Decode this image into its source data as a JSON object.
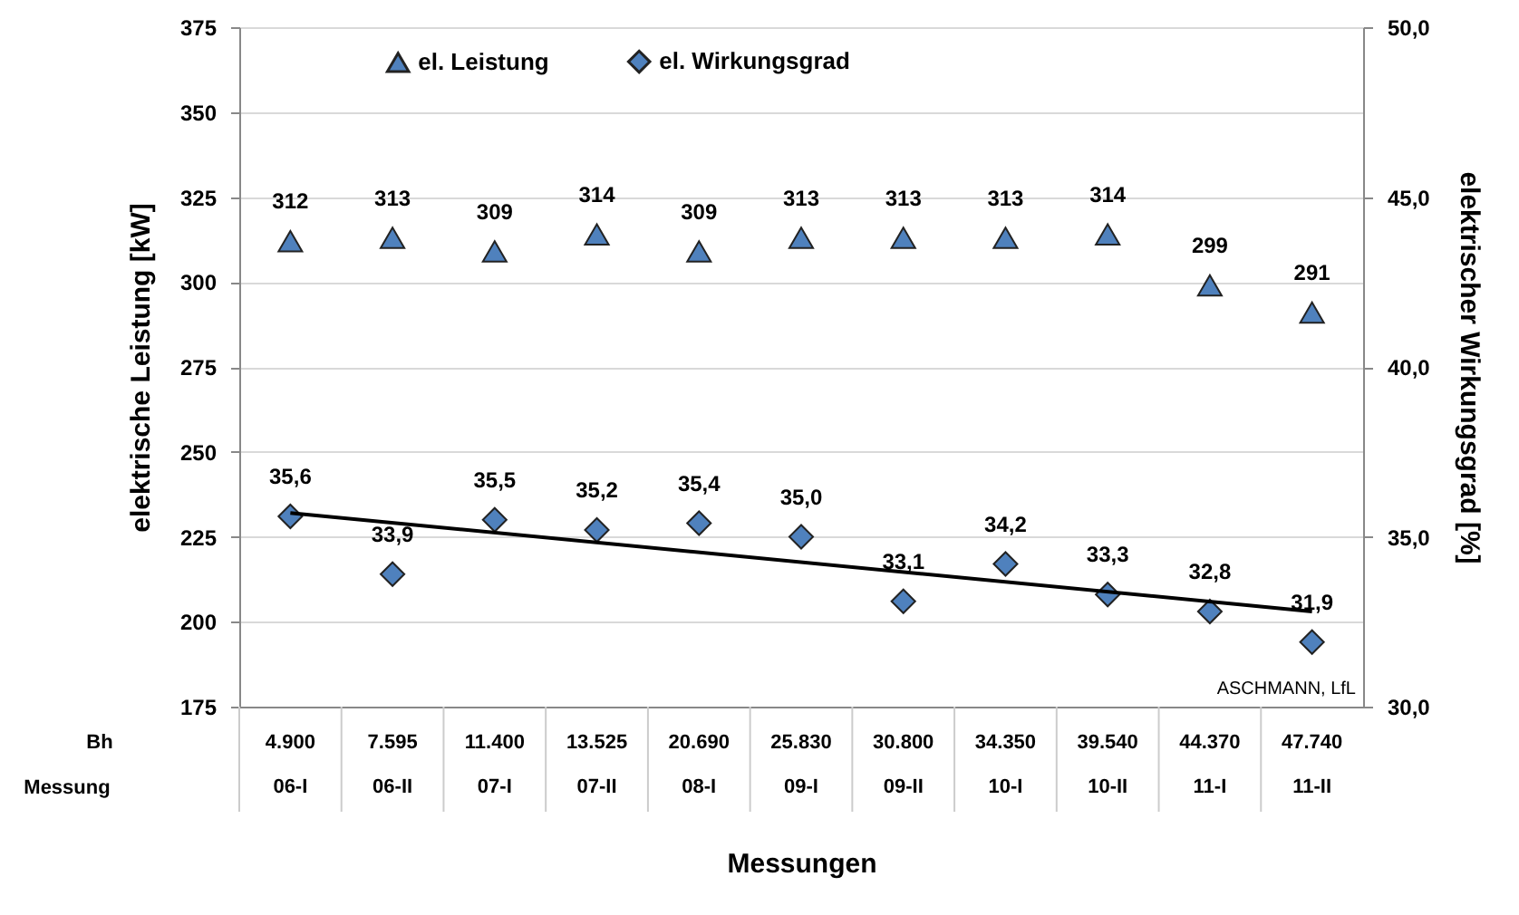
{
  "chart_data": {
    "type": "scatter",
    "xlabel": "Messungen",
    "ylabel": "elektrische Leistung [kW]",
    "y2label": "elektrischer Wirkungsgrad [%]",
    "categories": [
      "06-I",
      "06-II",
      "07-I",
      "07-II",
      "08-I",
      "09-I",
      "09-II",
      "10-I",
      "10-II",
      "11-I",
      "11-II"
    ],
    "series": [
      {
        "name": "el. Leistung",
        "color": "#4f81bd",
        "marker": "triangle",
        "values": [
          312,
          313,
          309,
          314,
          309,
          313,
          313,
          313,
          314,
          299,
          291
        ],
        "value_labels": [
          "312",
          "313",
          "309",
          "314",
          "309",
          "313",
          "313",
          "313",
          "314",
          "299",
          "291"
        ]
      },
      {
        "name": "el. Wirkungsgrad",
        "color": "#4f81bd",
        "marker": "diamond",
        "axis": "y2",
        "values": [
          35.6,
          33.9,
          35.5,
          35.2,
          35.4,
          35.0,
          33.1,
          34.2,
          33.3,
          32.8,
          31.9
        ],
        "value_labels": [
          "35,6",
          "33,9",
          "35,5",
          "35,2",
          "35,4",
          "35,0",
          "33,1",
          "34,2",
          "33,3",
          "32,8",
          "31,9"
        ]
      },
      {
        "type": "line",
        "color": "#000000",
        "axis": "y2",
        "x": [
          "06-I",
          "11-II"
        ],
        "values": [
          35.7,
          32.8
        ]
      }
    ],
    "ylim": [
      175,
      375
    ],
    "yticks": [
      175,
      200,
      225,
      250,
      275,
      300,
      325,
      350,
      375
    ],
    "y2lim": [
      30,
      50
    ],
    "y2ticks": [
      {
        "value": 30,
        "label": "30,0"
      },
      {
        "value": 35,
        "label": "35,0"
      },
      {
        "value": 40,
        "label": "40,0"
      },
      {
        "value": 45,
        "label": "45,0"
      },
      {
        "value": 50,
        "label": "50,0"
      }
    ],
    "grid": "y",
    "legend": "top",
    "annotations": [
      "ASCHMANN, LfL",
      "Bh",
      "Messung",
      "4.900",
      "7.595",
      "11.400",
      "13.525",
      "20.690",
      "25.830",
      "30.800",
      "34.350",
      "39.540",
      "44.370",
      "47.740"
    ]
  }
}
